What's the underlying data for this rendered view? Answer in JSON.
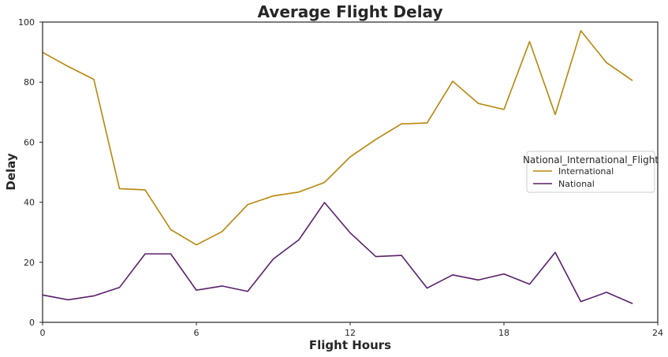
{
  "chart_data": {
    "type": "line",
    "title": "Average Flight Delay",
    "xlabel": "Flight Hours",
    "ylabel": "Delay",
    "xlim": [
      0,
      24
    ],
    "ylim": [
      0,
      100
    ],
    "x_ticks": [
      0,
      6,
      12,
      18,
      24
    ],
    "y_ticks": [
      0,
      20,
      40,
      60,
      80,
      100
    ],
    "grid": false,
    "legend": {
      "title": "National_International_Flight",
      "placement": "center-right"
    },
    "x": [
      0,
      1,
      2,
      3,
      4,
      5,
      6,
      7,
      8,
      9,
      10,
      11,
      12,
      13,
      14,
      15,
      16,
      17,
      18,
      19,
      20,
      21,
      22,
      23
    ],
    "series": [
      {
        "name": "International",
        "color": "#b8860b",
        "values": [
          89.9,
          85.2,
          80.9,
          44.5,
          44.1,
          30.9,
          25.8,
          30.2,
          39.2,
          42.1,
          43.4,
          46.6,
          55.1,
          60.9,
          66.1,
          66.4,
          80.3,
          72.9,
          70.9,
          93.5,
          69.2,
          97.1,
          86.5,
          80.6
        ]
      },
      {
        "name": "National",
        "color": "#5b1f6b",
        "values": [
          9.1,
          7.5,
          8.8,
          11.6,
          22.8,
          22.8,
          10.7,
          12.1,
          10.3,
          21.1,
          27.5,
          39.9,
          29.8,
          21.9,
          22.3,
          11.4,
          15.8,
          14.1,
          16.1,
          12.7,
          23.3,
          6.9,
          10.0,
          6.3
        ]
      }
    ]
  }
}
